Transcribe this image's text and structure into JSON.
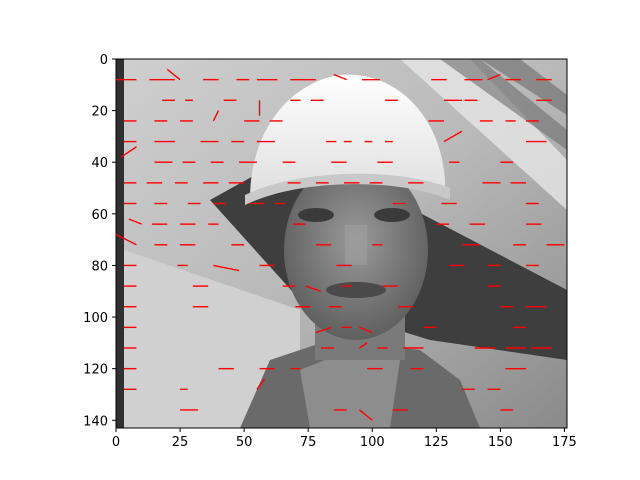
{
  "chart_data": {
    "type": "scatter",
    "title": "",
    "xlabel": "",
    "ylabel": "",
    "xlim": [
      -10,
      175
    ],
    "ylim": [
      143,
      -1
    ],
    "y_inverted": true,
    "x_ticks": [
      0,
      25,
      50,
      75,
      100,
      125,
      150,
      175
    ],
    "y_ticks": [
      0,
      20,
      40,
      60,
      80,
      100,
      120,
      140
    ],
    "x_tick_labels": [
      "0",
      "25",
      "50",
      "75",
      "100",
      "125",
      "150",
      "175"
    ],
    "y_tick_labels": [
      "0",
      "20",
      "40",
      "60",
      "80",
      "100",
      "120",
      "140"
    ],
    "image": {
      "description": "grayscale photo of a man wearing a white hard hat",
      "extent_x": [
        0,
        176
      ],
      "extent_y": [
        0,
        143
      ]
    },
    "segment_color": "#ff0000",
    "segments": [
      [
        0,
        8,
        8,
        8
      ],
      [
        13,
        8,
        23,
        8
      ],
      [
        20,
        4,
        25,
        8
      ],
      [
        34,
        8,
        40,
        8
      ],
      [
        47,
        8,
        52,
        8
      ],
      [
        55,
        8,
        63,
        8
      ],
      [
        68,
        8,
        78,
        8
      ],
      [
        85,
        6,
        90,
        8
      ],
      [
        96,
        8,
        103,
        8
      ],
      [
        123,
        8,
        129,
        8
      ],
      [
        136,
        8,
        143,
        8
      ],
      [
        145,
        8,
        150,
        6
      ],
      [
        152,
        8,
        158,
        8
      ],
      [
        164,
        8,
        170,
        8
      ],
      [
        18,
        16,
        23,
        16
      ],
      [
        27,
        16,
        30,
        16
      ],
      [
        42,
        16,
        47,
        16
      ],
      [
        56,
        16,
        56,
        22
      ],
      [
        68,
        16,
        72,
        16
      ],
      [
        76,
        16,
        81,
        16
      ],
      [
        105,
        16,
        110,
        16
      ],
      [
        128,
        16,
        135,
        16
      ],
      [
        136,
        16,
        141,
        16
      ],
      [
        164,
        16,
        170,
        16
      ],
      [
        3,
        24,
        8,
        24
      ],
      [
        15,
        24,
        20,
        24
      ],
      [
        25,
        24,
        30,
        24
      ],
      [
        38,
        24,
        40,
        20
      ],
      [
        50,
        24,
        56,
        24
      ],
      [
        60,
        24,
        65,
        24
      ],
      [
        122,
        24,
        128,
        24
      ],
      [
        142,
        24,
        147,
        24
      ],
      [
        152,
        24,
        156,
        24
      ],
      [
        160,
        24,
        165,
        24
      ],
      [
        3,
        32,
        8,
        32
      ],
      [
        15,
        32,
        23,
        32
      ],
      [
        33,
        32,
        40,
        32
      ],
      [
        45,
        32,
        50,
        32
      ],
      [
        55,
        32,
        62,
        32
      ],
      [
        82,
        32,
        86,
        32
      ],
      [
        89,
        32,
        92,
        32
      ],
      [
        97,
        32,
        100,
        32
      ],
      [
        105,
        32,
        108,
        32
      ],
      [
        128,
        32,
        135,
        28
      ],
      [
        160,
        32,
        168,
        32
      ],
      [
        2,
        38,
        8,
        34
      ],
      [
        15,
        40,
        22,
        40
      ],
      [
        26,
        40,
        31,
        40
      ],
      [
        37,
        40,
        42,
        40
      ],
      [
        48,
        40,
        55,
        40
      ],
      [
        65,
        40,
        70,
        40
      ],
      [
        84,
        40,
        90,
        40
      ],
      [
        102,
        40,
        108,
        40
      ],
      [
        130,
        40,
        134,
        40
      ],
      [
        150,
        40,
        155,
        40
      ],
      [
        3,
        48,
        8,
        48
      ],
      [
        12,
        48,
        18,
        48
      ],
      [
        23,
        48,
        28,
        48
      ],
      [
        34,
        48,
        40,
        48
      ],
      [
        44,
        48,
        50,
        48
      ],
      [
        67,
        48,
        72,
        48
      ],
      [
        78,
        48,
        83,
        48
      ],
      [
        89,
        48,
        95,
        48
      ],
      [
        99,
        48,
        104,
        48
      ],
      [
        114,
        48,
        120,
        48
      ],
      [
        143,
        48,
        150,
        48
      ],
      [
        154,
        48,
        160,
        48
      ],
      [
        3,
        56,
        8,
        56
      ],
      [
        15,
        56,
        20,
        56
      ],
      [
        28,
        56,
        33,
        56
      ],
      [
        38,
        56,
        43,
        56
      ],
      [
        52,
        56,
        58,
        56
      ],
      [
        62,
        56,
        66,
        56
      ],
      [
        108,
        56,
        113,
        56
      ],
      [
        127,
        56,
        133,
        56
      ],
      [
        160,
        56,
        165,
        56
      ],
      [
        5,
        62,
        10,
        64
      ],
      [
        14,
        64,
        20,
        64
      ],
      [
        25,
        64,
        31,
        64
      ],
      [
        36,
        64,
        40,
        64
      ],
      [
        69,
        64,
        74,
        64
      ],
      [
        125,
        64,
        130,
        64
      ],
      [
        138,
        64,
        144,
        64
      ],
      [
        160,
        64,
        166,
        64
      ],
      [
        0,
        68,
        8,
        72
      ],
      [
        15,
        72,
        20,
        72
      ],
      [
        25,
        72,
        31,
        72
      ],
      [
        45,
        72,
        50,
        72
      ],
      [
        78,
        72,
        84,
        72
      ],
      [
        100,
        72,
        104,
        72
      ],
      [
        135,
        72,
        142,
        72
      ],
      [
        155,
        72,
        160,
        72
      ],
      [
        168,
        72,
        175,
        72
      ],
      [
        3,
        80,
        8,
        80
      ],
      [
        24,
        80,
        28,
        80
      ],
      [
        38,
        80,
        48,
        82
      ],
      [
        56,
        80,
        62,
        80
      ],
      [
        86,
        80,
        92,
        80
      ],
      [
        130,
        80,
        136,
        80
      ],
      [
        145,
        80,
        150,
        80
      ],
      [
        160,
        80,
        165,
        80
      ],
      [
        3,
        88,
        8,
        88
      ],
      [
        30,
        88,
        36,
        88
      ],
      [
        65,
        88,
        70,
        88
      ],
      [
        74,
        88,
        80,
        90
      ],
      [
        88,
        88,
        92,
        88
      ],
      [
        104,
        88,
        110,
        88
      ],
      [
        145,
        88,
        150,
        88
      ],
      [
        3,
        96,
        8,
        96
      ],
      [
        30,
        96,
        36,
        96
      ],
      [
        70,
        96,
        76,
        96
      ],
      [
        83,
        96,
        88,
        96
      ],
      [
        110,
        96,
        116,
        96
      ],
      [
        150,
        96,
        155,
        96
      ],
      [
        160,
        96,
        168,
        96
      ],
      [
        3,
        104,
        8,
        104
      ],
      [
        78,
        106,
        84,
        104
      ],
      [
        88,
        104,
        92,
        104
      ],
      [
        95,
        104,
        100,
        106
      ],
      [
        120,
        104,
        125,
        104
      ],
      [
        155,
        104,
        160,
        104
      ],
      [
        3,
        112,
        8,
        112
      ],
      [
        80,
        112,
        85,
        112
      ],
      [
        95,
        112,
        98,
        110
      ],
      [
        102,
        112,
        106,
        112
      ],
      [
        112,
        112,
        120,
        112
      ],
      [
        140,
        112,
        148,
        112
      ],
      [
        152,
        112,
        160,
        112
      ],
      [
        162,
        112,
        170,
        112
      ],
      [
        3,
        120,
        8,
        120
      ],
      [
        40,
        120,
        46,
        120
      ],
      [
        56,
        120,
        62,
        120
      ],
      [
        68,
        120,
        72,
        120
      ],
      [
        98,
        120,
        104,
        120
      ],
      [
        115,
        120,
        120,
        120
      ],
      [
        152,
        120,
        160,
        120
      ],
      [
        3,
        128,
        8,
        128
      ],
      [
        25,
        128,
        28,
        128
      ],
      [
        55,
        128,
        58,
        124
      ],
      [
        135,
        128,
        140,
        128
      ],
      [
        145,
        128,
        150,
        128
      ],
      [
        25,
        136,
        32,
        136
      ],
      [
        85,
        136,
        90,
        136
      ],
      [
        95,
        136,
        100,
        140
      ],
      [
        108,
        136,
        114,
        136
      ],
      [
        150,
        136,
        155,
        136
      ]
    ]
  }
}
